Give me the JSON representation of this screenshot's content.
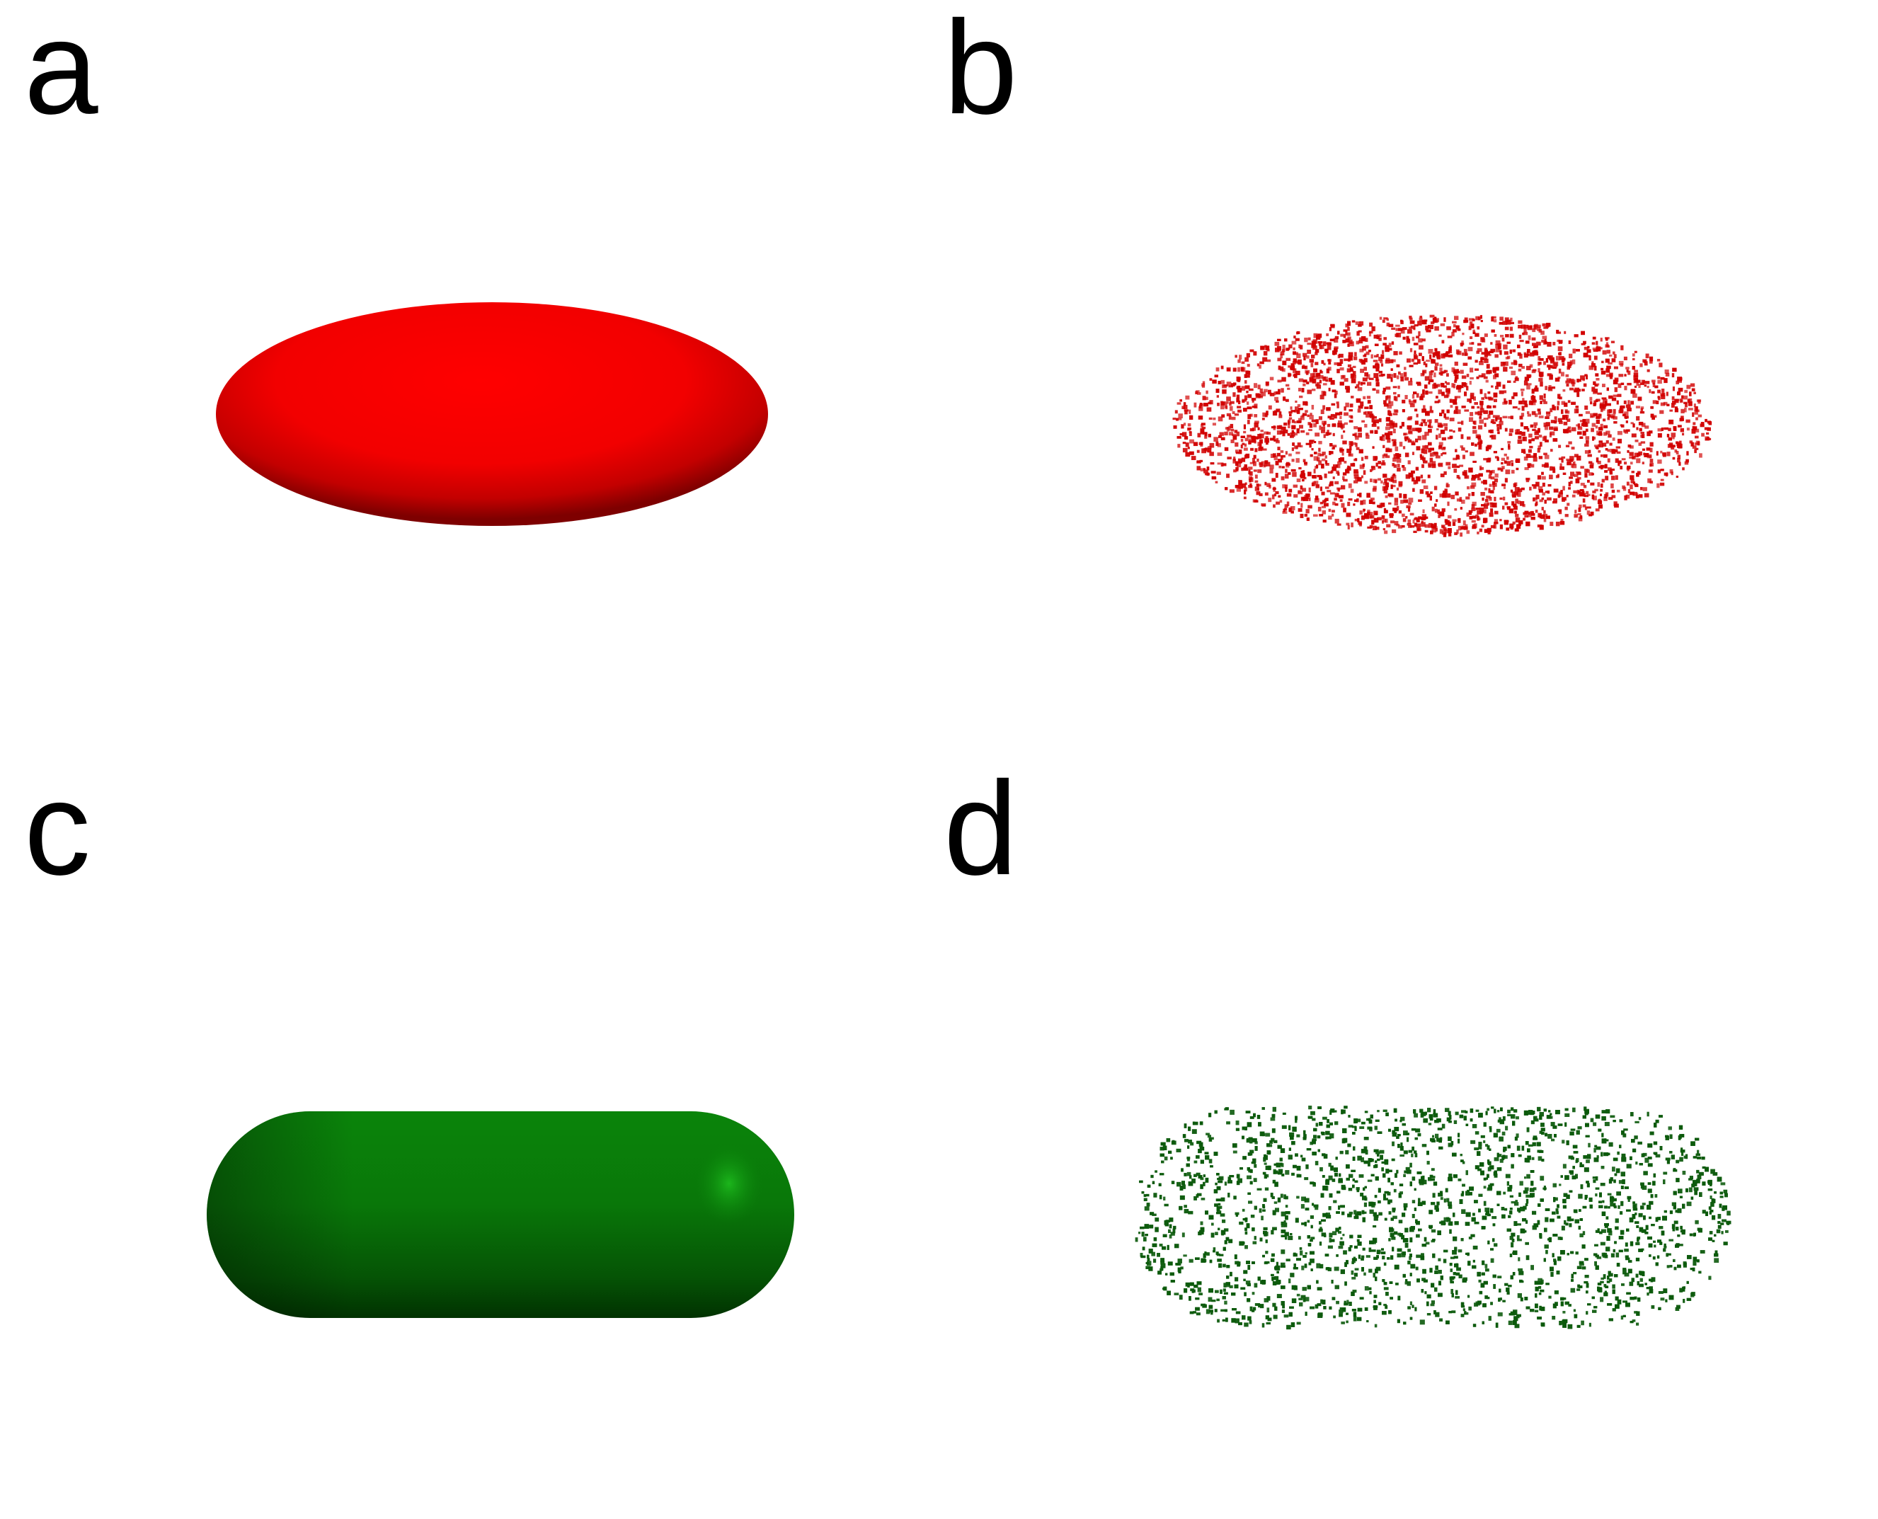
{
  "panels": [
    {
      "letter": "a",
      "shape": "ellipsoid",
      "render": "solid-surface",
      "color": "#ff0000"
    },
    {
      "letter": "b",
      "shape": "ellipsoid",
      "render": "point-cloud",
      "color": "#d10000"
    },
    {
      "letter": "c",
      "shape": "capsule",
      "render": "solid-surface",
      "color": "#0a800a"
    },
    {
      "letter": "d",
      "shape": "capsule",
      "render": "point-cloud",
      "color": "#0c5a0c"
    }
  ]
}
